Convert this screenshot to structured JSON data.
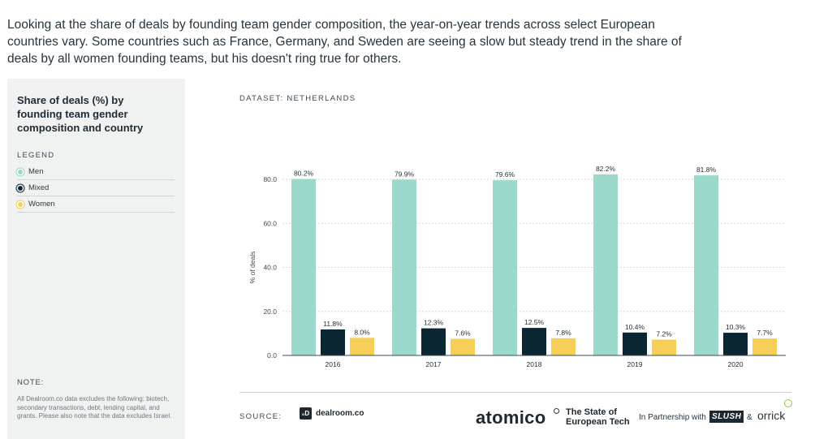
{
  "intro": "Looking at the share of deals by founding team gender composition, the year-on-year trends across select European countries vary. Some countries such as France, Germany, and Sweden are seeing a slow but steady trend in the share of deals by all women founding teams, but his doesn't ring true for others.",
  "sidebar": {
    "title": "Share of deals (%) by founding team gender composition and country",
    "legend_heading": "LEGEND",
    "legend": [
      {
        "label": "Men",
        "color": "#9ad9cc"
      },
      {
        "label": "Mixed",
        "color": "#0b2633"
      },
      {
        "label": "Women",
        "color": "#f5cf57"
      }
    ],
    "note_heading": "NOTE:",
    "note": "All Dealroom.co data excludes the following: biotech, secondary transactions, debt, lending capital, and grants. Please also note that the data excludes Israel."
  },
  "dataset_label": "DATASET: NETHERLANDS",
  "chart_data": {
    "type": "bar",
    "categories": [
      "2016",
      "2017",
      "2018",
      "2019",
      "2020"
    ],
    "series": [
      {
        "name": "Men",
        "color": "#9ad9cc",
        "values": [
          80.2,
          79.9,
          79.6,
          82.2,
          81.8
        ],
        "labels": [
          "80.2%",
          "79.9%",
          "79.6%",
          "82.2%",
          "81.8%"
        ]
      },
      {
        "name": "Mixed",
        "color": "#0b2633",
        "values": [
          11.8,
          12.3,
          12.5,
          10.4,
          10.3
        ],
        "labels": [
          "11.8%",
          "12.3%",
          "12.5%",
          "10.4%",
          "10.3%"
        ]
      },
      {
        "name": "Women",
        "color": "#f5cf57",
        "values": [
          8.0,
          7.6,
          7.8,
          7.2,
          7.7
        ],
        "labels": [
          "8.0%",
          "7.6%",
          "7.8%",
          "7.2%",
          "7.7%"
        ]
      }
    ],
    "ylabel": "% of deals",
    "ylim": [
      0,
      80
    ],
    "yticks": [
      0,
      20,
      40,
      60,
      80
    ],
    "ytick_labels": [
      "0.0",
      "20.0",
      "40.0",
      "60.0",
      "80.0"
    ],
    "grid": true,
    "legend_position": "left-sidebar"
  },
  "footer": {
    "source_label": "SOURCE:",
    "dealroom_mark": "₀D",
    "dealroom": "dealroom.co",
    "atomico": "atomico",
    "report_line1": "The State of",
    "report_line2": "European Tech",
    "partnership": "In Partnership with",
    "slush": "SLUSH",
    "amp": "&",
    "orrick": "orrick"
  }
}
